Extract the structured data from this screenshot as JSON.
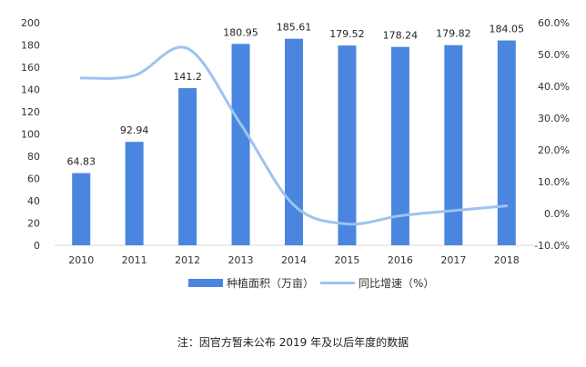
{
  "chart_data": {
    "type": "bar+line",
    "categories": [
      "2010",
      "2011",
      "2012",
      "2013",
      "2014",
      "2015",
      "2016",
      "2017",
      "2018"
    ],
    "series": [
      {
        "name": "种植面积（万亩）",
        "type": "bar",
        "axis": "left",
        "values": [
          64.83,
          92.94,
          141.2,
          180.95,
          185.61,
          179.52,
          178.24,
          179.82,
          184.05
        ],
        "labels": [
          "64.83",
          "92.94",
          "141.2",
          "180.95",
          "185.61",
          "179.52",
          "178.24",
          "179.82",
          "184.05"
        ]
      },
      {
        "name": "同比增速（%）",
        "type": "line",
        "axis": "right",
        "values": [
          42.6,
          43.4,
          51.9,
          28.1,
          2.6,
          -3.3,
          -0.7,
          0.9,
          2.4
        ]
      }
    ],
    "y_left": {
      "range": [
        0,
        200
      ],
      "ticks": [
        "0",
        "20",
        "40",
        "60",
        "80",
        "100",
        "120",
        "140",
        "160",
        "180",
        "200"
      ]
    },
    "y_right": {
      "range": [
        -10,
        60
      ],
      "ticks": [
        "-10.0%",
        "0.0%",
        "10.0%",
        "20.0%",
        "30.0%",
        "40.0%",
        "50.0%",
        "60.0%"
      ]
    },
    "grid": false,
    "legend_position": "bottom",
    "colors": {
      "bar": "#4a86e0",
      "line": "#9dc3f0",
      "axis": "#d9d9d9"
    }
  },
  "note": "注：因官方暂未公布 2019 年及以后年度的数据"
}
